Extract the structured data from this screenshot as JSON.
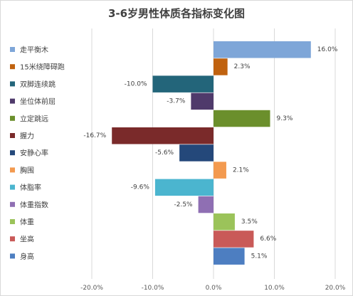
{
  "chart_data": {
    "type": "bar",
    "orientation": "horizontal",
    "title": "3-6岁男性体质各指标变化图",
    "categories": [
      "走平衡木",
      "15米绕障碍跑",
      "双脚连续跳",
      "坐位体前屈",
      "立定跳远",
      "握力",
      "安静心率",
      "胸围",
      "体脂率",
      "体重指数",
      "体重",
      "坐高",
      "身高"
    ],
    "values": [
      16.0,
      2.3,
      -10.0,
      -3.7,
      9.3,
      -16.7,
      -5.6,
      2.1,
      -9.6,
      -2.5,
      3.5,
      6.6,
      5.1
    ],
    "data_labels": [
      "16.0%",
      "2.3%",
      "-10.0%",
      "-3.7%",
      "9.3%",
      "-16.7%",
      "-5.6%",
      "2.1%",
      "-9.6%",
      "-2.5%",
      "3.5%",
      "6.6%",
      "5.1%"
    ],
    "colors": [
      "#7ea6d8",
      "#c0620f",
      "#23657a",
      "#4f3a6b",
      "#6b8f2c",
      "#7a2a2a",
      "#24487a",
      "#f39a4f",
      "#4bb5cf",
      "#8f6fb3",
      "#9bc35a",
      "#c95a58",
      "#4d7ec1"
    ],
    "xlim": [
      -20,
      20
    ],
    "xticks": [
      "-20.0%",
      "-10.0%",
      "0.0%",
      "10.0%",
      "20.0%"
    ],
    "xtick_values": [
      -20,
      -10,
      0,
      10,
      20
    ],
    "grid": true,
    "legend_position": "left"
  }
}
